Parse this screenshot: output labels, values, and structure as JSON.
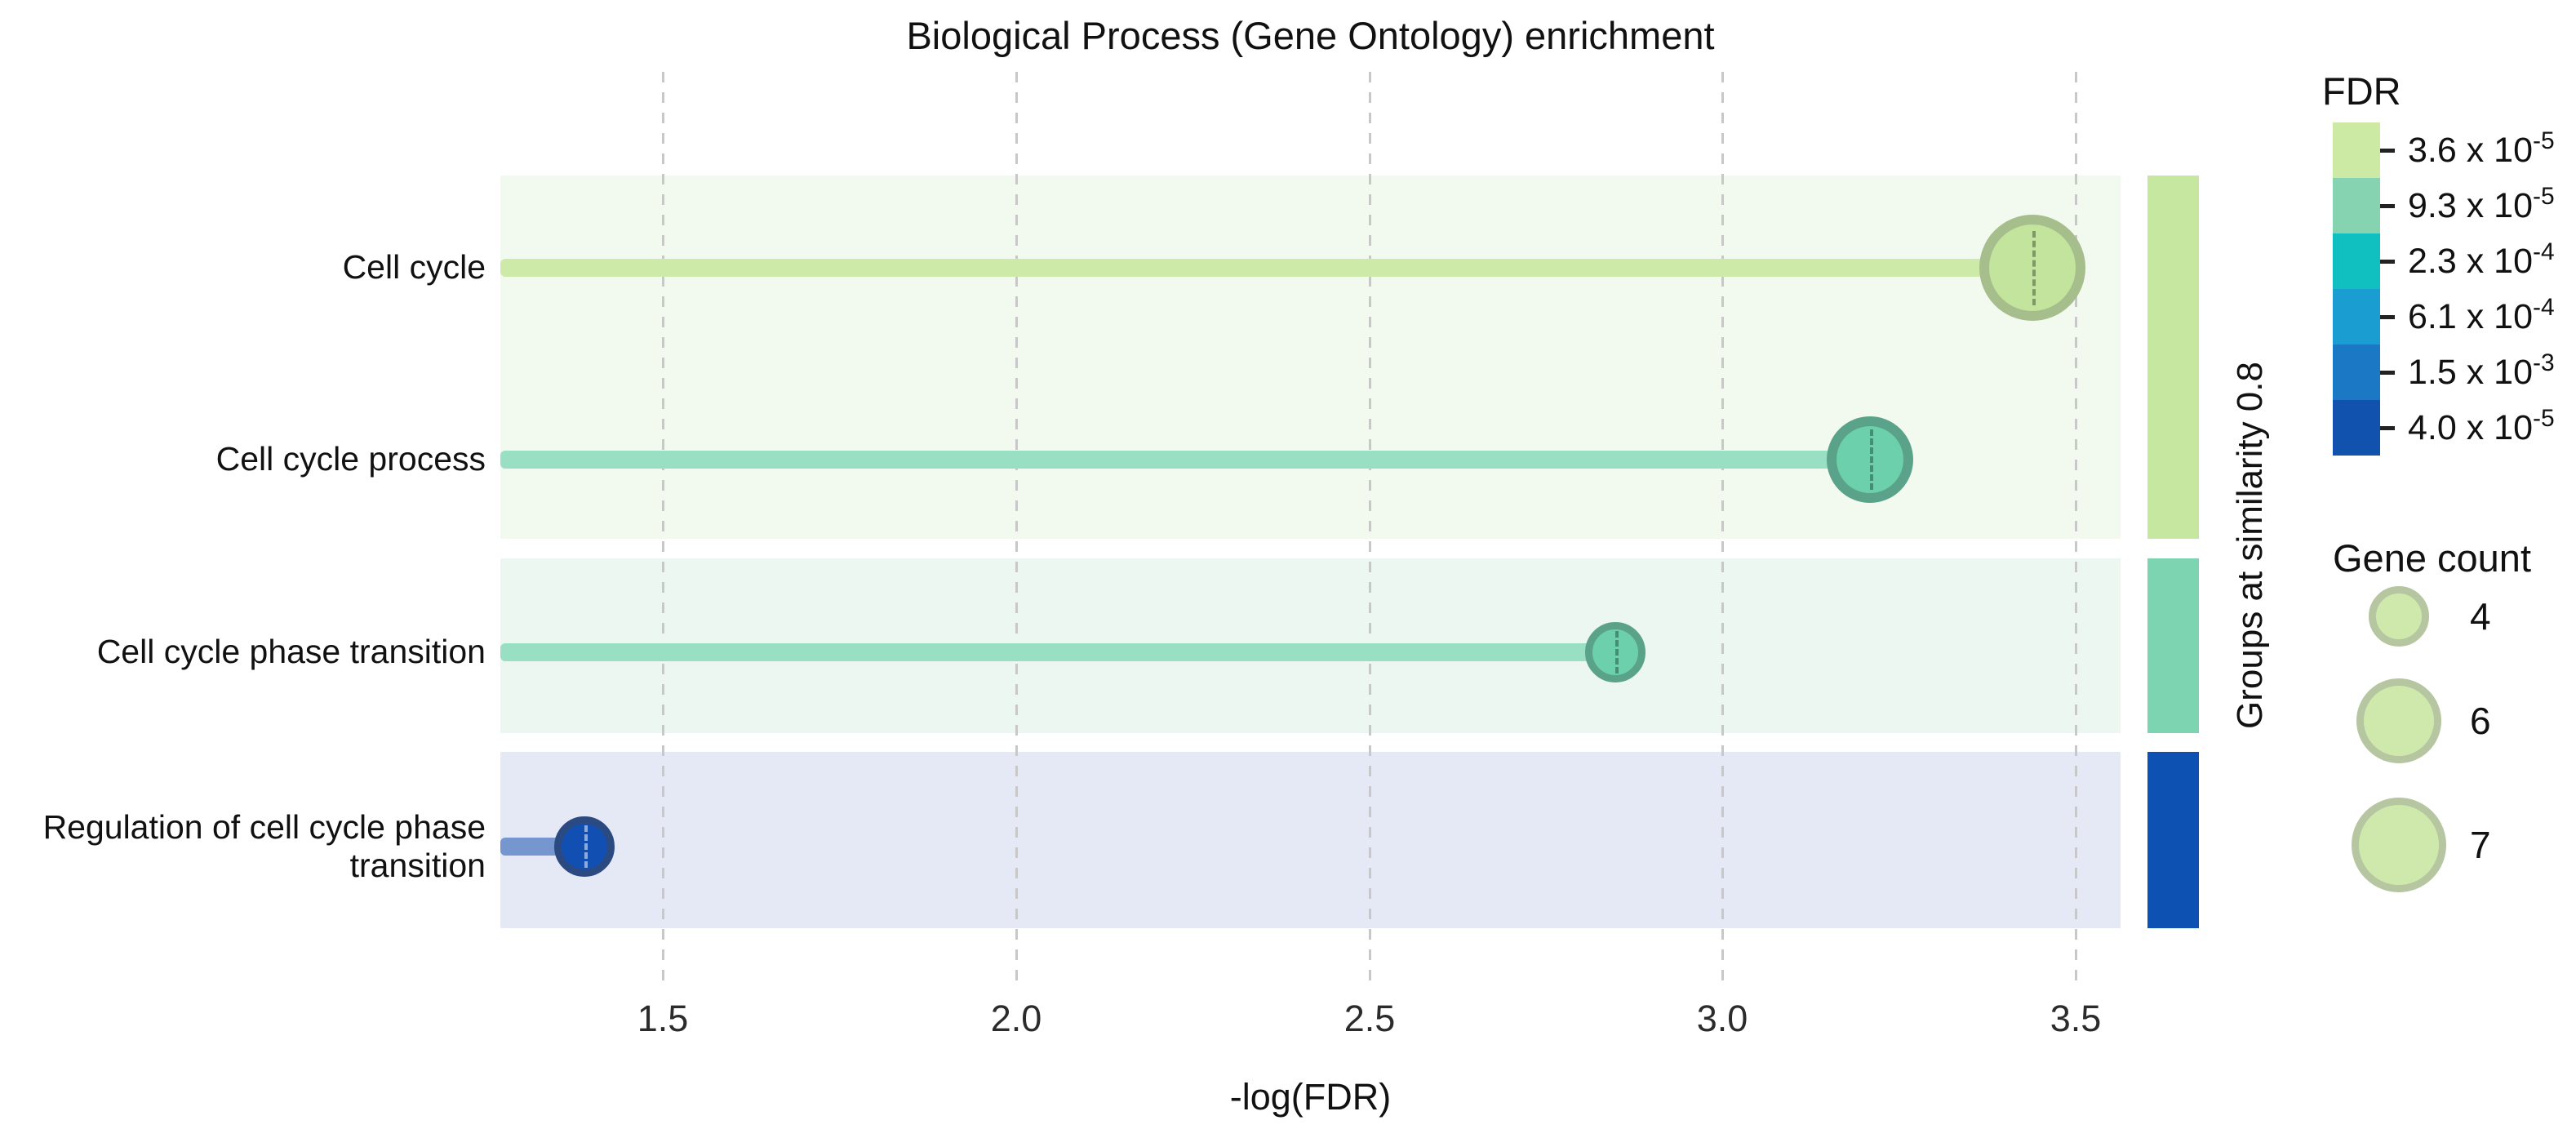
{
  "chart_data": {
    "type": "scatter",
    "subtype": "lollipop-dot-plot",
    "title": "Biological Process (Gene Ontology) enrichment",
    "xlabel": "-log(FDR)",
    "x_ticks": [
      "1.5",
      "2.0",
      "2.5",
      "3.0",
      "3.5"
    ],
    "xlim": [
      1.27,
      3.56
    ],
    "grid": "vertical-dashed",
    "legend_position": "right",
    "categories": [
      "Cell cycle",
      "Cell cycle process",
      "Cell cycle phase transition",
      "Regulation of cell cycle phase transition"
    ],
    "points": [
      {
        "label": "Cell cycle",
        "x": 3.44,
        "gene_count": 7,
        "fill": "#c3e49c",
        "border": "#a6bd8c",
        "stem_color": "#cdeaa8",
        "dash_color": "rgba(70,90,60,0.55)",
        "group": 1
      },
      {
        "label": "Cell cycle process",
        "x": 3.21,
        "gene_count": 6,
        "fill": "#6bd0ab",
        "border": "#5aa38a",
        "stem_color": "#98dfc3",
        "dash_color": "rgba(30,75,60,0.5)",
        "group": 1
      },
      {
        "label": "Cell cycle phase transition",
        "x": 2.85,
        "gene_count": 4,
        "fill": "#6bd0ab",
        "border": "#5aa38a",
        "stem_color": "#98dfc3",
        "dash_color": "rgba(30,75,60,0.5)",
        "group": 2
      },
      {
        "label": "Regulation of cell cycle phase transition",
        "x": 1.39,
        "gene_count": 4,
        "fill": "#1150b2",
        "border": "#2b4a82",
        "stem_color": "#7596ce",
        "dash_color": "rgba(225,232,245,0.6)",
        "group": 3
      }
    ],
    "groups_axis": {
      "label": "Groups at similarity 0.8",
      "segments": [
        {
          "group": 1,
          "rows": [
            0,
            1
          ],
          "bar_color": "#c5e79f",
          "band_color": "#f2f9ee"
        },
        {
          "group": 2,
          "rows": [
            2
          ],
          "bar_color": "#7dd4b0",
          "band_color": "#ecf7f1"
        },
        {
          "group": 3,
          "rows": [
            3
          ],
          "bar_color": "#0d52b2",
          "band_color": "#e4e9f5"
        }
      ]
    },
    "fdr_legend": {
      "title": "FDR",
      "entries": [
        {
          "base": "3.6 x 10",
          "exp": "-5",
          "color": "#cdeaa5"
        },
        {
          "base": "9.3 x 10",
          "exp": "-5",
          "color": "#86d3b1"
        },
        {
          "base": "2.3 x 10",
          "exp": "-4",
          "color": "#10bfc0"
        },
        {
          "base": "6.1 x 10",
          "exp": "-4",
          "color": "#1a9ed2"
        },
        {
          "base": "1.5 x 10",
          "exp": "-3",
          "color": "#1b78c4"
        },
        {
          "base": "4.0 x 10",
          "exp": "-5",
          "color": "#1052ae"
        }
      ]
    },
    "gene_count_legend": {
      "title": "Gene count",
      "items": [
        {
          "value": "4"
        },
        {
          "value": "6"
        },
        {
          "value": "7"
        }
      ]
    }
  }
}
